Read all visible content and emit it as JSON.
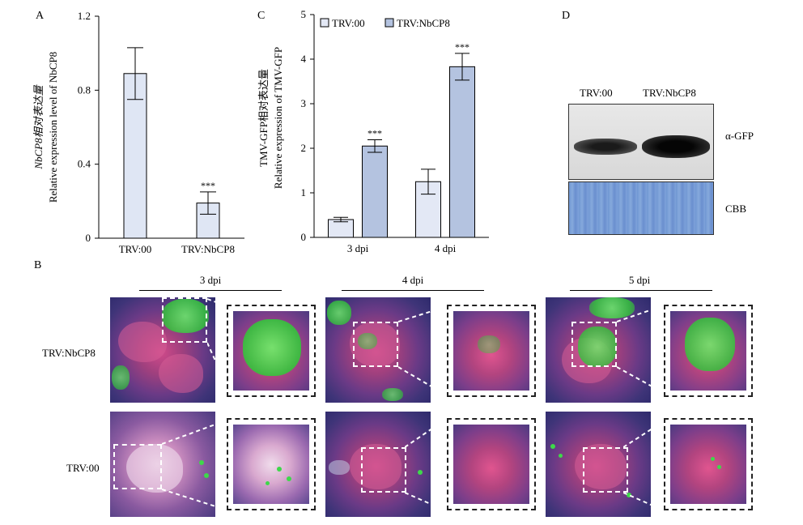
{
  "panels": {
    "a": "A",
    "b": "B",
    "c": "C",
    "d": "D"
  },
  "chart_data": [
    {
      "type": "bar",
      "panel": "A",
      "categories": [
        "TRV:00",
        "TRV:NbCP8"
      ],
      "values": [
        0.89,
        0.19
      ],
      "errors": [
        0.14,
        0.06
      ],
      "significance": [
        "",
        "***"
      ],
      "ylim": [
        0,
        1.2
      ],
      "yticks": [
        "0",
        "0.4",
        "0.8",
        "1.2"
      ],
      "ylabel_line1": "NbCP8相对表达量",
      "ylabel_line2": "Relative expression level of NbCP8",
      "xlabel": "",
      "bar_color": "#dfe6f4",
      "grid": false
    },
    {
      "type": "bar",
      "panel": "C",
      "categories": [
        "3 dpi",
        "4 dpi"
      ],
      "series": [
        {
          "name": "TRV:00",
          "values": [
            0.4,
            1.25
          ],
          "errors": [
            0.05,
            0.28
          ],
          "significance": [
            "",
            ""
          ],
          "color": "#e3e8f5"
        },
        {
          "name": "TRV:NbCP8",
          "values": [
            2.05,
            3.83
          ],
          "errors": [
            0.14,
            0.3
          ],
          "significance": [
            "***",
            "***"
          ],
          "color": "#b4c3e0"
        }
      ],
      "ylim": [
        0,
        5
      ],
      "yticks": [
        "0",
        "1",
        "2",
        "3",
        "4",
        "5"
      ],
      "ylabel_line1": "TMV-GFP相对表达量",
      "ylabel_line2": "Relative expression of TMV-GFP",
      "xlabel": "",
      "legend_position": "top-left",
      "grid": false
    }
  ],
  "blot": {
    "lanes": [
      "TRV:00",
      "TRV:NbCP8"
    ],
    "band_label": "α-GFP",
    "stain_label": "CBB"
  },
  "phenotype": {
    "timepoints": [
      "3 dpi",
      "4 dpi",
      "5 dpi"
    ],
    "rows": [
      "TRV:NbCP8",
      "TRV:00"
    ]
  }
}
